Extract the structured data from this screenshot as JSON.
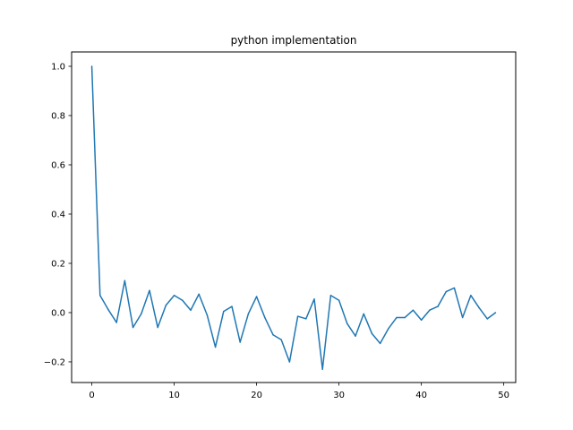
{
  "chart_data": {
    "type": "line",
    "title": "python implementation",
    "xlabel": "",
    "ylabel": "",
    "xlim": [
      -2.45,
      51.45
    ],
    "ylim": [
      -0.2838,
      1.0582
    ],
    "x_ticks": [
      0,
      10,
      20,
      30,
      40,
      50
    ],
    "y_ticks": [
      -0.2,
      0.0,
      0.2,
      0.4,
      0.6,
      0.8,
      1.0
    ],
    "x_tick_labels": [
      "0",
      "10",
      "20",
      "30",
      "40",
      "50"
    ],
    "y_tick_labels": [
      "−0.2",
      "0.0",
      "0.2",
      "0.4",
      "0.6",
      "0.8",
      "1.0"
    ],
    "grid": false,
    "series": [
      {
        "color": "#1f77b4",
        "x": [
          0,
          1,
          2,
          3,
          4,
          5,
          6,
          7,
          8,
          9,
          10,
          11,
          12,
          13,
          14,
          15,
          16,
          17,
          18,
          19,
          20,
          21,
          22,
          23,
          24,
          25,
          26,
          27,
          28,
          29,
          30,
          31,
          32,
          33,
          34,
          35,
          36,
          37,
          38,
          39,
          40,
          41,
          42,
          43,
          44,
          45,
          46,
          47,
          48,
          49
        ],
        "y": [
          1.0,
          0.07,
          0.012,
          -0.04,
          0.13,
          -0.06,
          -0.005,
          0.09,
          -0.06,
          0.03,
          0.07,
          0.05,
          0.01,
          0.075,
          -0.01,
          -0.14,
          0.005,
          0.025,
          -0.12,
          -0.005,
          0.065,
          -0.02,
          -0.09,
          -0.11,
          -0.2,
          -0.015,
          -0.025,
          0.055,
          -0.23,
          0.07,
          0.05,
          -0.045,
          -0.095,
          -0.005,
          -0.085,
          -0.125,
          -0.065,
          -0.02,
          -0.02,
          0.01,
          -0.03,
          0.01,
          0.025,
          0.085,
          0.1,
          -0.02,
          0.07,
          0.02,
          -0.025,
          0.0
        ]
      }
    ]
  }
}
